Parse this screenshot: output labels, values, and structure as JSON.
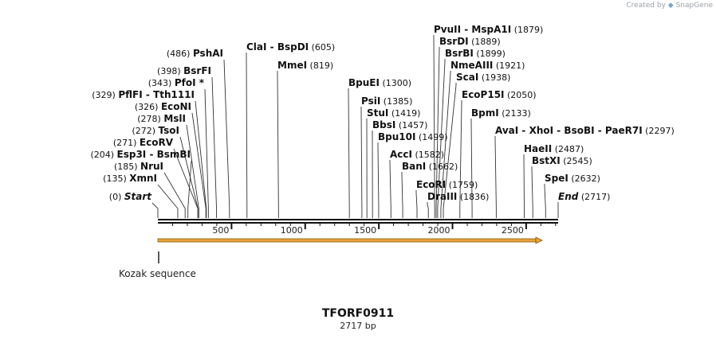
{
  "app": {
    "watermark_prefix": "Created by",
    "watermark_brand": "SnapGene"
  },
  "map": {
    "name": "TFORF0911",
    "length_label": "2717 bp",
    "length": 2717
  },
  "colors": {
    "feature_fill": "#e8a33a",
    "feature_stroke": "#8a5a12",
    "line": "#333333",
    "backbone": "#111111"
  },
  "axis": {
    "ticks": [
      500,
      1000,
      1500,
      2000,
      2500
    ]
  },
  "features": [
    {
      "name": "Kozak sequence",
      "start": 1,
      "end": 2717
    }
  ],
  "sites": [
    {
      "name": "Start",
      "pos": 0,
      "pos_label": "(0)",
      "style": "italic",
      "side": "left"
    },
    {
      "name": "XmnI",
      "pos": 135,
      "pos_label": "(135)",
      "side": "left"
    },
    {
      "name": "NruI",
      "pos": 185,
      "pos_label": "(185)",
      "side": "left"
    },
    {
      "name": "Esp3I  - BsmBI",
      "pos": 204,
      "pos_label": "(204)",
      "side": "left"
    },
    {
      "name": "EcoRV",
      "pos": 271,
      "pos_label": "(271)",
      "side": "left"
    },
    {
      "name": "TsoI",
      "pos": 272,
      "pos_label": "(272)",
      "side": "left"
    },
    {
      "name": "MslI",
      "pos": 278,
      "pos_label": "(278)",
      "side": "left"
    },
    {
      "name": "EcoNI",
      "pos": 326,
      "pos_label": "(326)",
      "side": "left"
    },
    {
      "name": "PflFI  - Tth111I",
      "pos": 329,
      "pos_label": "(329)",
      "side": "left"
    },
    {
      "name": "PfoI *",
      "pos": 343,
      "pos_label": "(343)",
      "side": "left"
    },
    {
      "name": "BsrFI",
      "pos": 398,
      "pos_label": "(398)",
      "side": "left"
    },
    {
      "name": "PshAI",
      "pos": 486,
      "pos_label": "(486)",
      "side": "left"
    },
    {
      "name": "ClaI  - BspDI",
      "pos": 605,
      "pos_label": "(605)",
      "side": "right"
    },
    {
      "name": "MmeI",
      "pos": 819,
      "pos_label": "(819)",
      "side": "right"
    },
    {
      "name": "BpuEI",
      "pos": 1300,
      "pos_label": "(1300)",
      "side": "right"
    },
    {
      "name": "PsiI",
      "pos": 1385,
      "pos_label": "(1385)",
      "side": "right"
    },
    {
      "name": "StuI",
      "pos": 1419,
      "pos_label": "(1419)",
      "side": "right"
    },
    {
      "name": "BbsI",
      "pos": 1457,
      "pos_label": "(1457)",
      "side": "right"
    },
    {
      "name": "Bpu10I",
      "pos": 1499,
      "pos_label": "(1499)",
      "side": "right"
    },
    {
      "name": "AccI",
      "pos": 1582,
      "pos_label": "(1582)",
      "side": "right"
    },
    {
      "name": "BanI",
      "pos": 1662,
      "pos_label": "(1662)",
      "side": "right"
    },
    {
      "name": "EcoRI",
      "pos": 1759,
      "pos_label": "(1759)",
      "side": "right"
    },
    {
      "name": "DraIII",
      "pos": 1836,
      "pos_label": "(1836)",
      "side": "right"
    },
    {
      "name": "PvuII  - MspA1I",
      "pos": 1879,
      "pos_label": "(1879)",
      "side": "right"
    },
    {
      "name": "BsrDI",
      "pos": 1889,
      "pos_label": "(1889)",
      "side": "right"
    },
    {
      "name": "BsrBI",
      "pos": 1899,
      "pos_label": "(1899)",
      "side": "right"
    },
    {
      "name": "NmeAIII",
      "pos": 1921,
      "pos_label": "(1921)",
      "side": "right"
    },
    {
      "name": "ScaI",
      "pos": 1938,
      "pos_label": "(1938)",
      "side": "right"
    },
    {
      "name": "EcoP15I",
      "pos": 2050,
      "pos_label": "(2050)",
      "side": "right"
    },
    {
      "name": "BpmI",
      "pos": 2133,
      "pos_label": "(2133)",
      "side": "right"
    },
    {
      "name": "AvaI  - XhoI  - BsoBI  - PaeR7I",
      "pos": 2297,
      "pos_label": "(2297)",
      "side": "right"
    },
    {
      "name": "HaeII",
      "pos": 2487,
      "pos_label": "(2487)",
      "side": "right"
    },
    {
      "name": "BstXI",
      "pos": 2545,
      "pos_label": "(2545)",
      "side": "right"
    },
    {
      "name": "SpeI",
      "pos": 2632,
      "pos_label": "(2632)",
      "side": "right"
    },
    {
      "name": "End",
      "pos": 2717,
      "pos_label": "(2717)",
      "style": "italic",
      "side": "right"
    }
  ]
}
